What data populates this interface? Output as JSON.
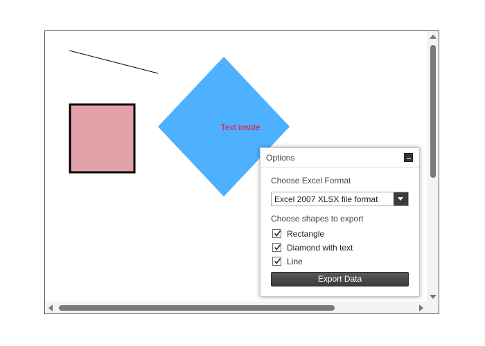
{
  "canvas": {
    "line": {
      "stroke": "#000000"
    },
    "rectangle": {
      "fill": "#e0a2a8",
      "stroke": "#000000"
    },
    "diamond": {
      "fill": "#4db1ff",
      "text": "Text inside",
      "text_color": "#e8173a"
    }
  },
  "options": {
    "title": "Options",
    "format_label": "Choose Excel Format",
    "format_value": "Excel 2007 XLSX file format",
    "shapes_label": "Choose shapes to export",
    "shapes": [
      {
        "label": "Rectangle",
        "checked": true
      },
      {
        "label": "Diamond with text",
        "checked": true
      },
      {
        "label": "Line",
        "checked": true
      }
    ],
    "export_label": "Export Data"
  },
  "icons": {
    "minimize": "minimize-icon",
    "dropdown": "chevron-down-icon",
    "check": "checkmark-icon",
    "scroll_up": "arrow-up-icon",
    "scroll_down": "arrow-down-icon",
    "scroll_left": "arrow-left-icon",
    "scroll_right": "arrow-right-icon"
  }
}
